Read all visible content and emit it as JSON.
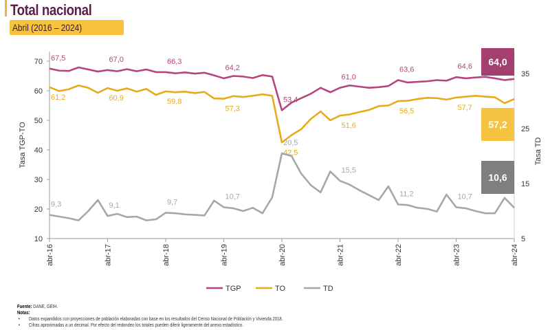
{
  "header": {
    "title": "Total nacional",
    "subtitle": "Abril (2016 – 2024)"
  },
  "colors": {
    "TGP": "#b5457c",
    "TO": "#e8a91a",
    "TD": "#a3a8ab",
    "TGP_box": "#a3406f",
    "TO_box": "#f5c242",
    "TD_box": "#7f7f7f"
  },
  "chart_data": {
    "type": "line",
    "ylabel": "Tasa TGP-TO",
    "y2label": "Tasa TD",
    "ylim": [
      10,
      70
    ],
    "yticks": [
      "10",
      "20",
      "30",
      "40",
      "50",
      "60",
      "70"
    ],
    "y2lim": [
      5,
      38
    ],
    "y2ticks": [
      "5",
      "15",
      "25",
      "35"
    ],
    "xticks": [
      "abr-16",
      "abr-17",
      "abr-18",
      "abr-19",
      "abr-20",
      "abr-21",
      "abr-22",
      "abr-23",
      "abr-24"
    ],
    "grid": false,
    "legend": "bottom",
    "series": [
      {
        "name": "TGP",
        "axis": "left",
        "values": [
          67.5,
          66.8,
          66.7,
          67.9,
          67.2,
          66.5,
          67.0,
          66.6,
          67.3,
          66.6,
          67.2,
          66.3,
          66.3,
          65.9,
          66.2,
          65.8,
          66.1,
          65.2,
          64.2,
          65.0,
          64.8,
          64.3,
          65.3,
          64.8,
          53.4,
          56.0,
          57.5,
          59.0,
          61.0,
          59.5,
          61.0,
          61.8,
          61.4,
          61.0,
          61.2,
          61.6,
          63.6,
          62.8,
          63.0,
          63.2,
          63.6,
          63.4,
          64.6,
          64.2,
          64.5,
          64.7,
          64.2,
          63.6,
          64.0
        ],
        "labels": [
          "67,5",
          "67,0",
          "66,3",
          "64,2",
          "53,4",
          "61,0",
          "63,6",
          "64,6"
        ],
        "last_label": "64,0"
      },
      {
        "name": "TO",
        "axis": "left",
        "values": [
          61.2,
          59.9,
          60.5,
          61.8,
          61.0,
          59.3,
          60.9,
          60.0,
          60.8,
          59.7,
          60.6,
          58.6,
          59.8,
          59.5,
          59.7,
          59.2,
          59.6,
          57.4,
          57.3,
          58.2,
          57.9,
          58.3,
          58.8,
          58.3,
          42.5,
          45.0,
          47.0,
          50.5,
          53.0,
          50.0,
          51.6,
          52.0,
          52.8,
          53.5,
          54.8,
          55.0,
          56.5,
          56.6,
          57.2,
          57.6,
          57.5,
          57.0,
          57.7,
          58.0,
          58.3,
          58.0,
          57.8,
          55.8,
          57.2
        ],
        "labels": [
          "61,2",
          "60,9",
          "59,8",
          "57,3",
          "42,5",
          "51,6",
          "56,5",
          "57,7"
        ],
        "last_label": "57,2"
      },
      {
        "name": "TD",
        "axis": "right",
        "values": [
          9.3,
          9.0,
          8.7,
          8.3,
          10.0,
          12.0,
          9.1,
          9.5,
          8.9,
          9.0,
          8.3,
          8.5,
          9.7,
          9.6,
          9.4,
          9.3,
          9.2,
          11.9,
          10.7,
          10.5,
          10.0,
          10.6,
          9.6,
          12.5,
          20.5,
          20.0,
          16.8,
          14.7,
          13.4,
          17.2,
          15.5,
          14.8,
          13.8,
          12.9,
          12.0,
          14.5,
          11.2,
          11.1,
          10.6,
          10.4,
          9.9,
          13.0,
          10.7,
          10.5,
          10.0,
          9.6,
          9.6,
          12.4,
          10.6
        ],
        "labels": [
          "9,3",
          "9,1",
          "9,7",
          "10,7",
          "20,5",
          "15,5",
          "11,2",
          "10,7"
        ],
        "last_label": "10,6"
      }
    ]
  },
  "notes": {
    "source_label": "Fuente:",
    "source": " DANE, GEIH.",
    "notes_label": "Notas:",
    "items": [
      "Datos expandidos con proyecciones de población elaboradas con base en los resultados del Censo Nacional de Población y Vivienda 2018.",
      "Cifras aproximadas a un decimal. Por efecto del redondeo los totales pueden diferir ligeramente del anexo estadístico."
    ]
  }
}
